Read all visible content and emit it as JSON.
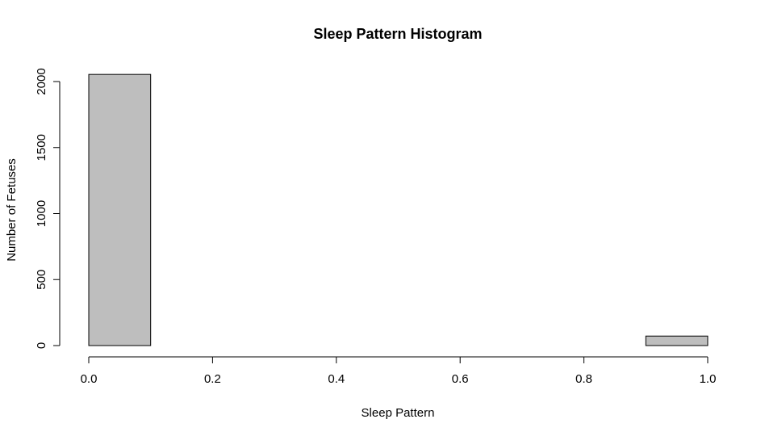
{
  "chart_data": {
    "type": "bar",
    "title": "Sleep Pattern Histogram",
    "xlabel": "Sleep Pattern",
    "ylabel": "Number of Fetuses",
    "xlim": [
      0.0,
      1.0
    ],
    "ylim": [
      0,
      2000
    ],
    "xticks": [
      "0.0",
      "0.2",
      "0.4",
      "0.6",
      "0.8",
      "1.0"
    ],
    "yticks": [
      "0",
      "500",
      "1000",
      "1500",
      "2000"
    ],
    "bins": [
      {
        "x0": 0.0,
        "x1": 0.1,
        "count": 2054
      },
      {
        "x0": 0.1,
        "x1": 0.2,
        "count": 0
      },
      {
        "x0": 0.2,
        "x1": 0.3,
        "count": 0
      },
      {
        "x0": 0.3,
        "x1": 0.4,
        "count": 0
      },
      {
        "x0": 0.4,
        "x1": 0.5,
        "count": 0
      },
      {
        "x0": 0.5,
        "x1": 0.6,
        "count": 0
      },
      {
        "x0": 0.6,
        "x1": 0.7,
        "count": 0
      },
      {
        "x0": 0.7,
        "x1": 0.8,
        "count": 0
      },
      {
        "x0": 0.8,
        "x1": 0.9,
        "count": 0
      },
      {
        "x0": 0.9,
        "x1": 1.0,
        "count": 72
      }
    ],
    "colors": {
      "bar_fill": "#bebebe",
      "bar_stroke": "#000000"
    },
    "grid": false,
    "legend": "none"
  }
}
